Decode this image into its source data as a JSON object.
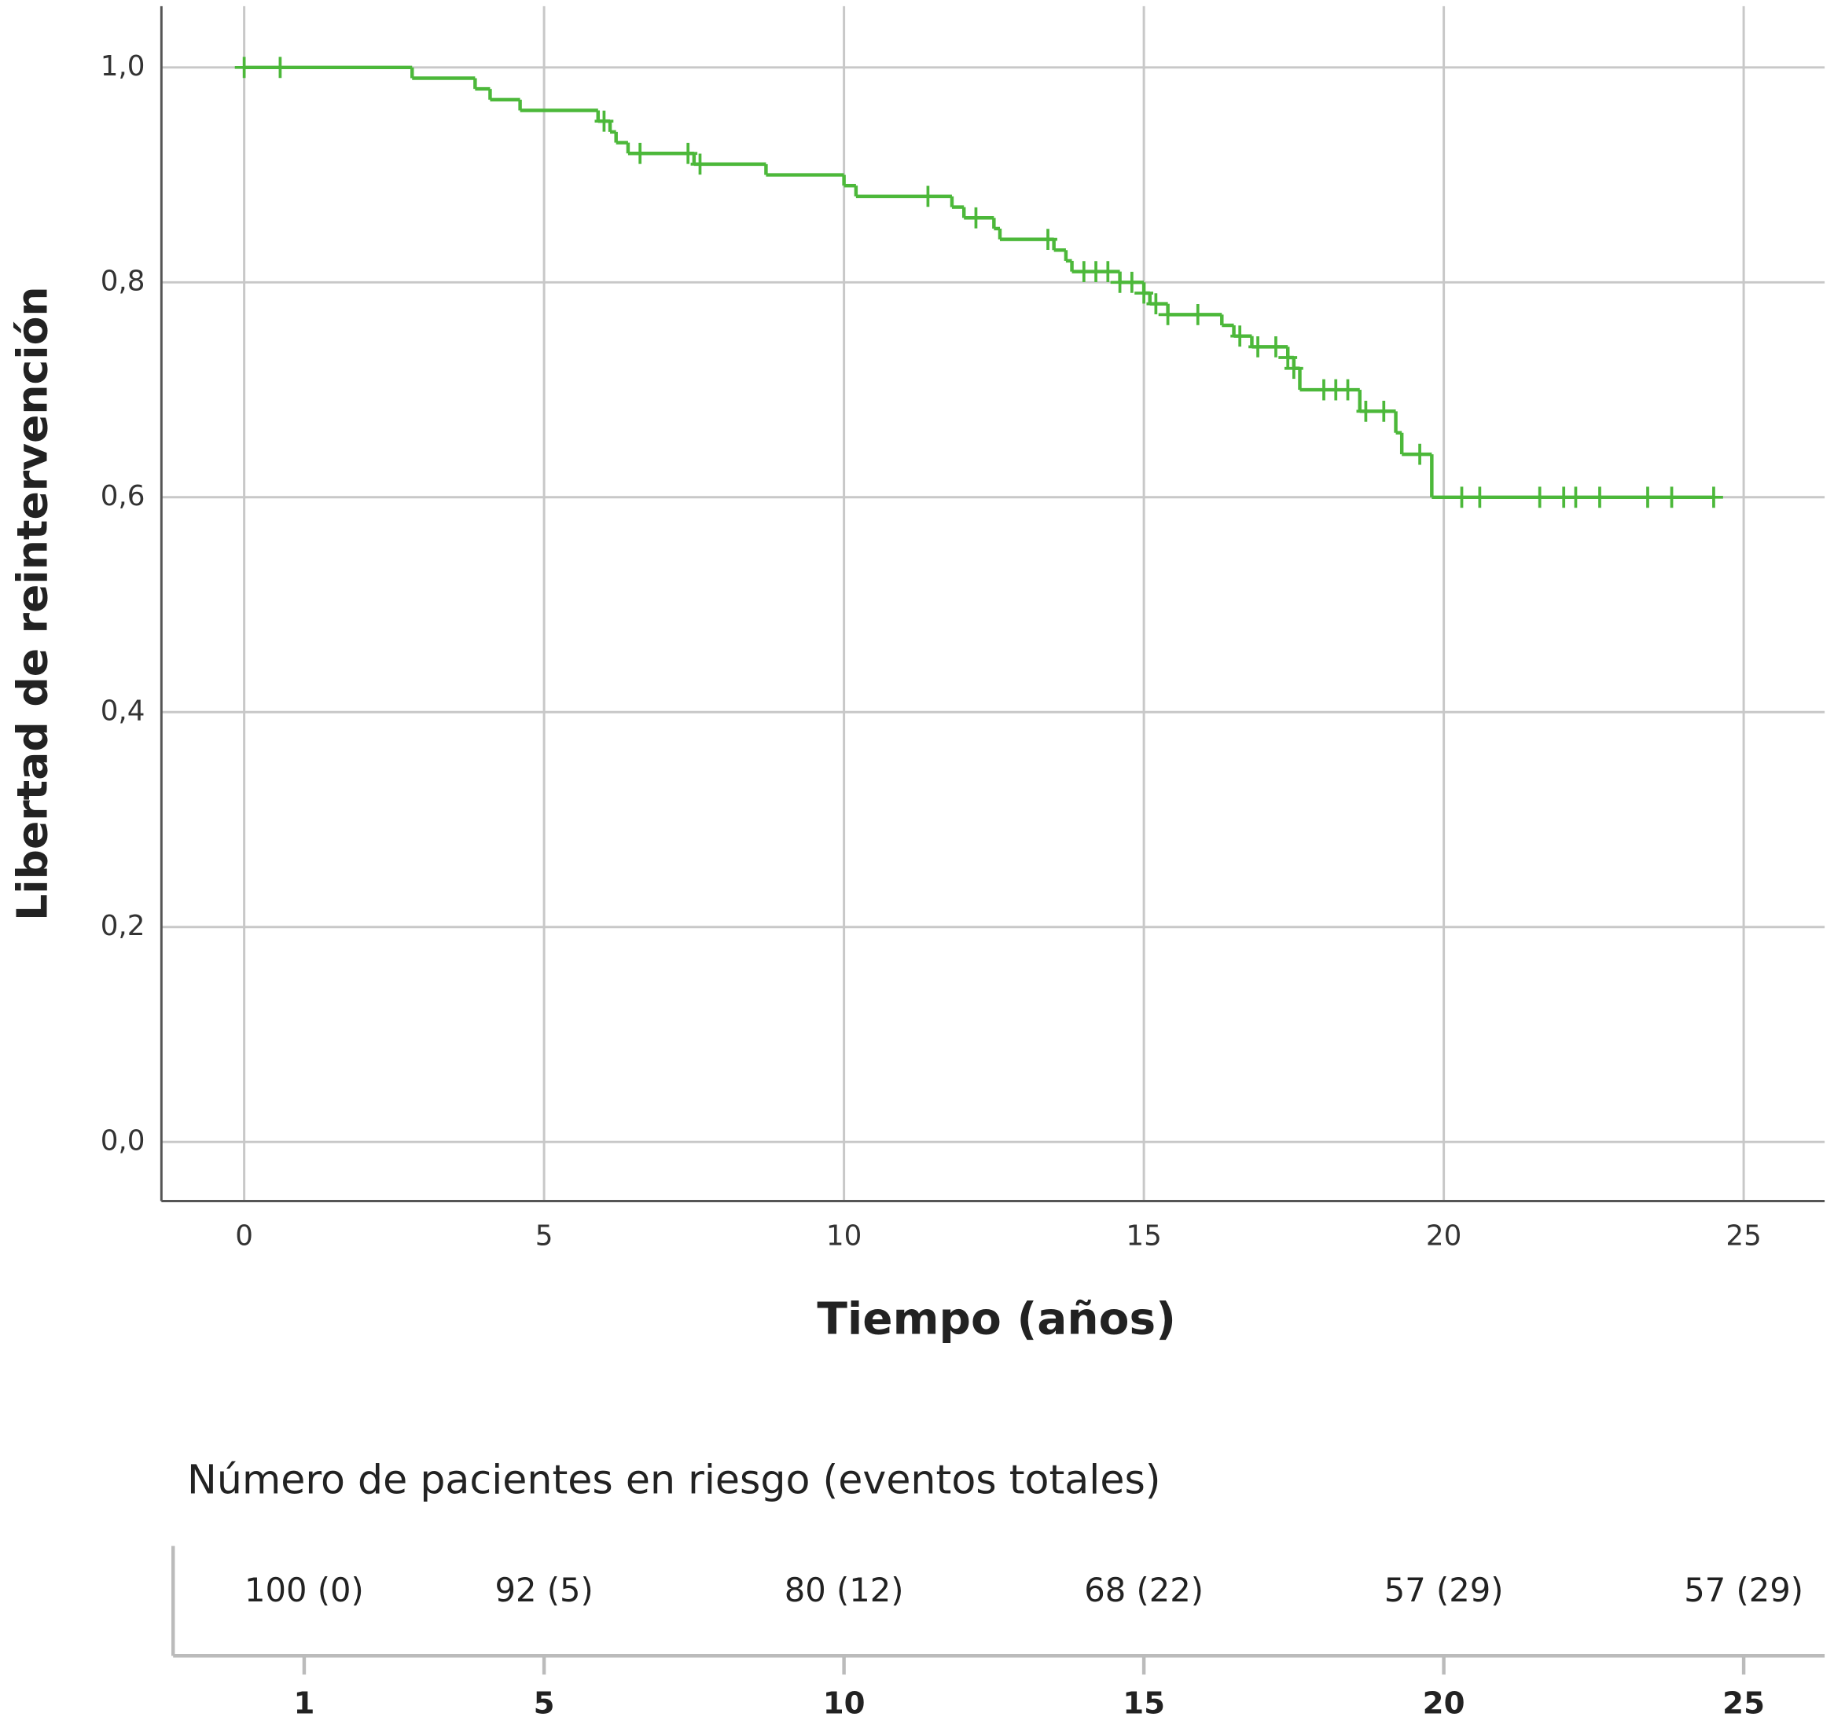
{
  "chart_data": {
    "type": "step",
    "x_label": "Tiempo (años)",
    "y_label": "Libertad de reintervención",
    "xlim": [
      -1.38,
      26.35
    ],
    "ylim": [
      -0.055,
      1.057
    ],
    "xticks": [
      0,
      5,
      10,
      15,
      20,
      25
    ],
    "yticks": [
      {
        "value": 0,
        "label": "0,0"
      },
      {
        "value": 0.2,
        "label": "0,2"
      },
      {
        "value": 0.4,
        "label": "0,4"
      },
      {
        "value": 0.6,
        "label": "0,6"
      },
      {
        "value": 0.8,
        "label": "0,8"
      },
      {
        "value": 1,
        "label": "1,0"
      }
    ],
    "grid": true,
    "color": "#4cb83a",
    "x": [
      0,
      2.8,
      3.85,
      4.1,
      4.6,
      5.9,
      6.1,
      6.2,
      6.4,
      7.5,
      8.7,
      10.0,
      10.2,
      11.8,
      12.0,
      12.5,
      12.6,
      13.5,
      13.7,
      13.8,
      14.6,
      15.0,
      15.1,
      15.4,
      16.3,
      16.5,
      16.8,
      17.4,
      17.5,
      17.6,
      18.6,
      19.2,
      19.3,
      19.8,
      24.5
    ],
    "values": [
      1.0,
      0.99,
      0.98,
      0.97,
      0.96,
      0.95,
      0.94,
      0.93,
      0.92,
      0.91,
      0.9,
      0.89,
      0.88,
      0.87,
      0.86,
      0.85,
      0.84,
      0.83,
      0.82,
      0.81,
      0.8,
      0.79,
      0.78,
      0.77,
      0.76,
      0.75,
      0.74,
      0.73,
      0.72,
      0.7,
      0.68,
      0.66,
      0.64,
      0.6,
      0.6
    ],
    "censored": {
      "x": [
        0,
        0.6,
        6.0,
        6.6,
        7.4,
        7.6,
        11.4,
        12.2,
        13.4,
        14.0,
        14.2,
        14.4,
        14.6,
        14.8,
        15.0,
        15.2,
        15.4,
        15.9,
        16.6,
        16.9,
        17.2,
        17.4,
        17.5,
        18.0,
        18.2,
        18.4,
        18.7,
        19.0,
        19.6,
        20.3,
        20.6,
        21.6,
        22.0,
        22.2,
        22.6,
        23.4,
        23.8,
        24.5
      ],
      "values": [
        1.0,
        1.0,
        0.95,
        0.92,
        0.92,
        0.91,
        0.88,
        0.86,
        0.84,
        0.81,
        0.81,
        0.81,
        0.8,
        0.8,
        0.79,
        0.78,
        0.77,
        0.77,
        0.75,
        0.74,
        0.74,
        0.73,
        0.72,
        0.7,
        0.7,
        0.7,
        0.68,
        0.68,
        0.64,
        0.6,
        0.6,
        0.6,
        0.6,
        0.6,
        0.6,
        0.6,
        0.6,
        0.6
      ]
    }
  },
  "risk_table": {
    "title": "Número de pacientes en riesgo (eventos totales)",
    "xticks": [
      1,
      5,
      10,
      15,
      20,
      25
    ],
    "cells": [
      "100 (0)",
      "92 (5)",
      "80 (12)",
      "68 (22)",
      "57 (29)",
      "57 (29)"
    ]
  }
}
